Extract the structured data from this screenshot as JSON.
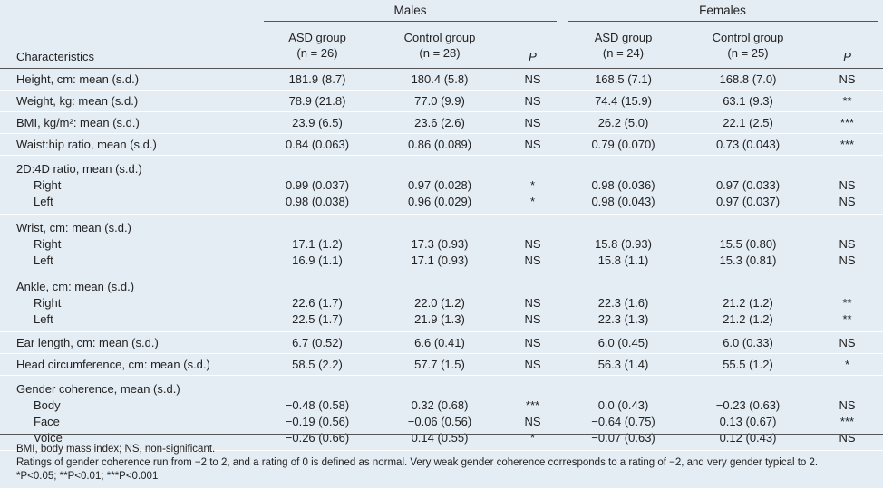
{
  "table": {
    "groups": [
      "Males",
      "Females"
    ],
    "characteristic": "Characteristics",
    "columns": [
      {
        "name": "ASD group",
        "n": "(n = 26)"
      },
      {
        "name": "Control group",
        "n": "(n = 28)"
      },
      {
        "name": "P"
      },
      {
        "name": "ASD group",
        "n": "(n = 24)"
      },
      {
        "name": "Control group",
        "n": "(n = 25)"
      },
      {
        "name": "P"
      }
    ],
    "sections": [
      {
        "label": "Height, cm: mean (s.d.)",
        "values": [
          "181.9 (8.7)",
          "180.4 (5.8)",
          "NS",
          "168.5 (7.1)",
          "168.8 (7.0)",
          "NS"
        ]
      },
      {
        "label": "Weight, kg: mean (s.d.)",
        "values": [
          "78.9 (21.8)",
          "77.0 (9.9)",
          "NS",
          "74.4 (15.9)",
          "63.1 (9.3)",
          "**"
        ]
      },
      {
        "label": "BMI, kg/m²: mean (s.d.)",
        "values": [
          "23.9 (6.5)",
          "23.6 (2.6)",
          "NS",
          "26.2 (5.0)",
          "22.1 (2.5)",
          "***"
        ]
      },
      {
        "label": "Waist:hip ratio, mean (s.d.)",
        "values": [
          "0.84 (0.063)",
          "0.86 (0.089)",
          "NS",
          "0.79 (0.070)",
          "0.73 (0.043)",
          "***"
        ]
      },
      {
        "label": "2D:4D ratio, mean (s.d.)",
        "rows": [
          {
            "label": "Right",
            "values": [
              "0.99 (0.037)",
              "0.97 (0.028)",
              "*",
              "0.98 (0.036)",
              "0.97 (0.033)",
              "NS"
            ]
          },
          {
            "label": "Left",
            "values": [
              "0.98 (0.038)",
              "0.96 (0.029)",
              "*",
              "0.98 (0.043)",
              "0.97 (0.037)",
              "NS"
            ]
          }
        ]
      },
      {
        "label": "Wrist, cm: mean (s.d.)",
        "rows": [
          {
            "label": "Right",
            "values": [
              "17.1 (1.2)",
              "17.3 (0.93)",
              "NS",
              "15.8 (0.93)",
              "15.5 (0.80)",
              "NS"
            ]
          },
          {
            "label": "Left",
            "values": [
              "16.9 (1.1)",
              "17.1 (0.93)",
              "NS",
              "15.8 (1.1)",
              "15.3 (0.81)",
              "NS"
            ]
          }
        ]
      },
      {
        "label": "Ankle, cm: mean (s.d.)",
        "rows": [
          {
            "label": "Right",
            "values": [
              "22.6 (1.7)",
              "22.0 (1.2)",
              "NS",
              "22.3 (1.6)",
              "21.2 (1.2)",
              "**"
            ]
          },
          {
            "label": "Left",
            "values": [
              "22.5 (1.7)",
              "21.9 (1.3)",
              "NS",
              "22.3 (1.3)",
              "21.2 (1.2)",
              "**"
            ]
          }
        ]
      },
      {
        "label": "Ear length, cm: mean (s.d.)",
        "values": [
          "6.7 (0.52)",
          "6.6 (0.41)",
          "NS",
          "6.0 (0.45)",
          "6.0 (0.33)",
          "NS"
        ]
      },
      {
        "label": "Head circumference, cm: mean (s.d.)",
        "values": [
          "58.5 (2.2)",
          "57.7 (1.5)",
          "NS",
          "56.3 (1.4)",
          "55.5 (1.2)",
          "*"
        ]
      },
      {
        "label": "Gender coherence, mean (s.d.)",
        "rows": [
          {
            "label": "Body",
            "values": [
              "−0.48 (0.58)",
              "0.32 (0.68)",
              "***",
              "0.0 (0.43)",
              "−0.23 (0.63)",
              "NS"
            ]
          },
          {
            "label": "Face",
            "values": [
              "−0.19 (0.56)",
              "−0.06 (0.56)",
              "NS",
              "−0.64 (0.75)",
              "0.13 (0.67)",
              "***"
            ]
          },
          {
            "label": "Voice",
            "values": [
              "−0.26 (0.66)",
              "0.14 (0.55)",
              "*",
              "−0.07 (0.63)",
              "0.12 (0.43)",
              "NS"
            ]
          }
        ]
      }
    ],
    "notes": [
      "BMI, body mass index; NS, non-significant.",
      "Ratings of gender coherence run from −2 to 2, and a rating of 0 is defined as normal. Very weak gender coherence corresponds to a rating of −2, and very gender typical to 2.",
      "*P<0.05; **P<0.01; ***P<0.001"
    ]
  }
}
